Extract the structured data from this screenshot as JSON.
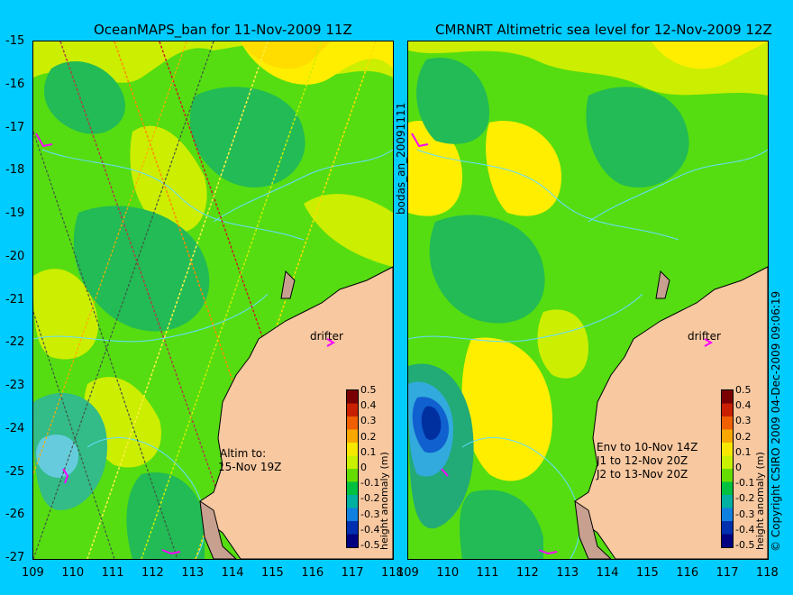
{
  "left_panel": {
    "title": "OceanMAPS_ban for 11-Nov-2009 11Z",
    "altim_label": "Altim to:",
    "altim_date": "15-Nov 19Z",
    "drifter_label": "drifter",
    "colorbar_label": "height anomaly (m)"
  },
  "right_panel": {
    "title": "CMRNRT Altimetric sea level  for 12-Nov-2009 12Z",
    "env_lines": [
      "Env to 10-Nov 14Z",
      "J1 to 12-Nov 20Z",
      "J2 to 13-Nov 20Z"
    ],
    "drifter_label": "drifter",
    "colorbar_label": "height anomaly (m)"
  },
  "side_label": "bodas_an_20091111",
  "copyright": "© Copyright CSIRO 2009   04-Dec-2009 09:06:19",
  "axes": {
    "lon_ticks": [
      "109",
      "110",
      "111",
      "112",
      "113",
      "114",
      "115",
      "116",
      "117",
      "118"
    ],
    "lat_ticks": [
      "-15",
      "-16",
      "-17",
      "-18",
      "-19",
      "-20",
      "-21",
      "-22",
      "-23",
      "-24",
      "-25",
      "-26",
      "-27"
    ]
  },
  "colorbar": {
    "ticks": [
      "0.5",
      "0.4",
      "0.3",
      "0.2",
      "0.1",
      "0",
      "-0.1",
      "-0.2",
      "-0.3",
      "-0.4",
      "-0.5"
    ],
    "colors": [
      "#7a0000",
      "#c82000",
      "#f06000",
      "#f8a800",
      "#f8e800",
      "#c8f000",
      "#66dd00",
      "#00c040",
      "#00b0a0",
      "#1080e0",
      "#0030b0",
      "#000080"
    ]
  },
  "colors": {
    "background": "#00ccff",
    "land": "#f8c8a0",
    "drifter_marker": "#ff00ff"
  }
}
